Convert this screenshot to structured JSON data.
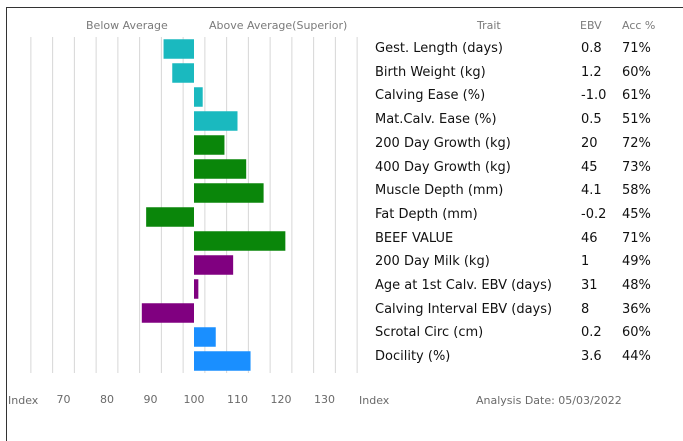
{
  "header": {
    "below_label": "Below Average",
    "above_label": "Above Average(Superior)",
    "trait_col": "Trait",
    "ebv_col": "EBV",
    "acc_col": "Acc %"
  },
  "footer": {
    "index_left": "Index",
    "index_right": "Index",
    "analysis_date": "Analysis Date: 05/03/2022"
  },
  "traits": [
    {
      "name": "Gest. Length (days)",
      "ebv": "0.8",
      "acc": "71%"
    },
    {
      "name": "Birth Weight (kg)",
      "ebv": "1.2",
      "acc": "60%"
    },
    {
      "name": "Calving Ease (%)",
      "ebv": "-1.0",
      "acc": "61%"
    },
    {
      "name": "Mat.Calv. Ease (%)",
      "ebv": "0.5",
      "acc": "51%"
    },
    {
      "name": "200 Day Growth (kg)",
      "ebv": "20",
      "acc": "72%"
    },
    {
      "name": "400 Day Growth (kg)",
      "ebv": "45",
      "acc": "73%"
    },
    {
      "name": "Muscle Depth (mm)",
      "ebv": "4.1",
      "acc": "58%"
    },
    {
      "name": "Fat Depth (mm)",
      "ebv": "-0.2",
      "acc": "45%"
    },
    {
      "name": "BEEF VALUE",
      "ebv": "46",
      "acc": "71%"
    },
    {
      "name": "200 Day Milk (kg)",
      "ebv": "1",
      "acc": "49%"
    },
    {
      "name": "Age at 1st Calv. EBV (days)",
      "ebv": "31",
      "acc": "48%"
    },
    {
      "name": "Calving Interval EBV (days)",
      "ebv": "8",
      "acc": "36%"
    },
    {
      "name": "Scrotal Circ (cm)",
      "ebv": "0.2",
      "acc": "60%"
    },
    {
      "name": "Docility (%)",
      "ebv": "3.6",
      "acc": "44%"
    }
  ],
  "chart_data": {
    "type": "bar",
    "orientation": "horizontal",
    "xlabel": "Index",
    "xlim": [
      60,
      140
    ],
    "baseline": 100,
    "tick_labels": [
      "70",
      "80",
      "90",
      "100",
      "110",
      "120",
      "130"
    ],
    "tick_values": [
      70,
      80,
      90,
      100,
      110,
      120,
      130
    ],
    "grid": true,
    "categories": [
      "Gest. Length (days)",
      "Birth Weight (kg)",
      "Calving Ease (%)",
      "Mat.Calv. Ease (%)",
      "200 Day Growth (kg)",
      "400 Day Growth (kg)",
      "Muscle Depth (mm)",
      "Fat Depth (mm)",
      "BEEF VALUE",
      "200 Day Milk (kg)",
      "Age at 1st Calv. EBV (days)",
      "Calving Interval EBV (days)",
      "Scrotal Circ (cm)",
      "Docility (%)"
    ],
    "values": [
      93,
      95,
      102,
      110,
      107,
      112,
      116,
      89,
      121,
      109,
      101,
      88,
      105,
      113
    ],
    "colors": [
      "#1ab9bf",
      "#1ab9bf",
      "#1ab9bf",
      "#1ab9bf",
      "#0a860a",
      "#0a860a",
      "#0a860a",
      "#0a860a",
      "#0a860a",
      "#800080",
      "#800080",
      "#800080",
      "#1a8fff",
      "#1a8fff"
    ]
  }
}
